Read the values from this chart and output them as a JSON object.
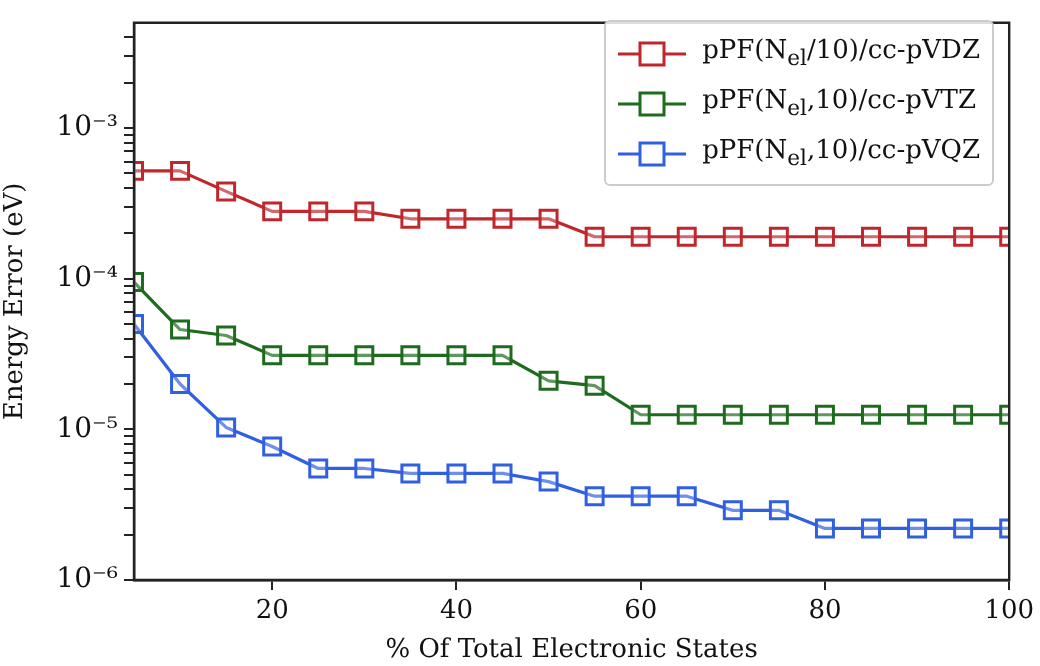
{
  "chart_data": {
    "type": "line",
    "xlabel": "% Of Total Electronic States",
    "ylabel": "Energy Error (eV)",
    "x": [
      5,
      10,
      15,
      20,
      25,
      30,
      35,
      40,
      45,
      50,
      55,
      60,
      65,
      70,
      75,
      80,
      85,
      90,
      95,
      100
    ],
    "series": [
      {
        "name": "pPF(N$_{el}$/10)/cc-pVDZ",
        "color": "#c0272d",
        "values": [
          0.00052,
          0.00052,
          0.00038,
          0.00028,
          0.00028,
          0.00028,
          0.00025,
          0.00025,
          0.00025,
          0.00025,
          0.00019,
          0.00019,
          0.00019,
          0.00019,
          0.00019,
          0.00019,
          0.00019,
          0.00019,
          0.00019,
          0.00019
        ]
      },
      {
        "name": "pPF(N$_{el}$,10)/cc-pVTZ",
        "color": "#1e6b1e",
        "values": [
          9.5e-05,
          4.6e-05,
          4.2e-05,
          3.1e-05,
          3.1e-05,
          3.1e-05,
          3.1e-05,
          3.1e-05,
          3.1e-05,
          2.1e-05,
          1.95e-05,
          1.25e-05,
          1.25e-05,
          1.25e-05,
          1.25e-05,
          1.25e-05,
          1.25e-05,
          1.25e-05,
          1.25e-05,
          1.25e-05
        ]
      },
      {
        "name": "pPF(N$_{el}$,10)/cc-pVQZ",
        "color": "#3060e0",
        "values": [
          5e-05,
          2e-05,
          1.03e-05,
          7.7e-06,
          5.5e-06,
          5.5e-06,
          5.1e-06,
          5.1e-06,
          5.1e-06,
          4.5e-06,
          3.6e-06,
          3.6e-06,
          3.6e-06,
          2.9e-06,
          2.9e-06,
          2.2e-06,
          2.2e-06,
          2.2e-06,
          2.2e-06,
          2.2e-06
        ]
      }
    ],
    "xlim": [
      5,
      100
    ],
    "xticks": [
      20,
      40,
      60,
      80,
      100
    ],
    "ylim": [
      1e-06,
      0.005
    ],
    "log": true,
    "yticks": [
      {
        "value": 1e-06,
        "label": "10⁻⁶"
      },
      {
        "value": 2e-06,
        "label": null
      },
      {
        "value": 3e-06,
        "label": null
      },
      {
        "value": 4e-06,
        "label": null
      },
      {
        "value": 5e-06,
        "label": null
      },
      {
        "value": 6e-06,
        "label": null
      },
      {
        "value": 7e-06,
        "label": null
      },
      {
        "value": 8e-06,
        "label": null
      },
      {
        "value": 9e-06,
        "label": null
      },
      {
        "value": 1e-05,
        "label": "10⁻⁵"
      },
      {
        "value": 2e-05,
        "label": null
      },
      {
        "value": 3e-05,
        "label": null
      },
      {
        "value": 4e-05,
        "label": null
      },
      {
        "value": 5e-05,
        "label": null
      },
      {
        "value": 6e-05,
        "label": null
      },
      {
        "value": 7e-05,
        "label": null
      },
      {
        "value": 8e-05,
        "label": null
      },
      {
        "value": 9e-05,
        "label": null
      },
      {
        "value": 0.0001,
        "label": "10⁻⁴"
      },
      {
        "value": 0.0002,
        "label": null
      },
      {
        "value": 0.0003,
        "label": null
      },
      {
        "value": 0.0004,
        "label": null
      },
      {
        "value": 0.0005,
        "label": null
      },
      {
        "value": 0.0006,
        "label": null
      },
      {
        "value": 0.0007,
        "label": null
      },
      {
        "value": 0.0008,
        "label": null
      },
      {
        "value": 0.0009,
        "label": null
      },
      {
        "value": 0.001,
        "label": "10⁻³"
      },
      {
        "value": 0.002,
        "label": null
      },
      {
        "value": 0.003,
        "label": null
      },
      {
        "value": 0.004,
        "label": null
      }
    ],
    "grid": false,
    "legend": "top right",
    "marker": "square",
    "line_style": "solid"
  }
}
